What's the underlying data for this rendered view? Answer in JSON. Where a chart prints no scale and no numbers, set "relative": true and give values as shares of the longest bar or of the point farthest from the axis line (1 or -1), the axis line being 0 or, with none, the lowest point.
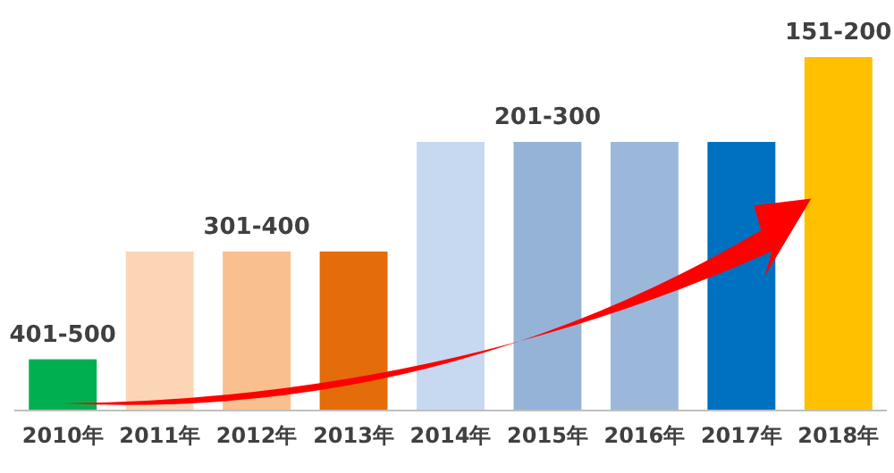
{
  "chart_data": {
    "type": "bar",
    "relative": true,
    "categories": [
      "2010年",
      "2011年",
      "2012年",
      "2013年",
      "2014年",
      "2015年",
      "2016年",
      "2017年",
      "2018年"
    ],
    "values": [
      0.145,
      0.45,
      0.45,
      0.45,
      0.76,
      0.76,
      0.76,
      0.76,
      1
    ],
    "colors": [
      "#00b050",
      "#fbd5b5",
      "#f9bf8f",
      "#e46c0a",
      "#c6d9f1",
      "#95b3d7",
      "#9bb8db",
      "#0070c0",
      "#ffc000"
    ],
    "annotations": [
      {
        "text": "401-500",
        "x": "2010年",
        "y": 0.145
      },
      {
        "text": "301-400",
        "x": "2012年",
        "y": 0.45
      },
      {
        "text": "201-300",
        "x": "2015年",
        "y": 0.76
      },
      {
        "text": "151-200",
        "x": "2018年",
        "y": 1
      }
    ]
  }
}
